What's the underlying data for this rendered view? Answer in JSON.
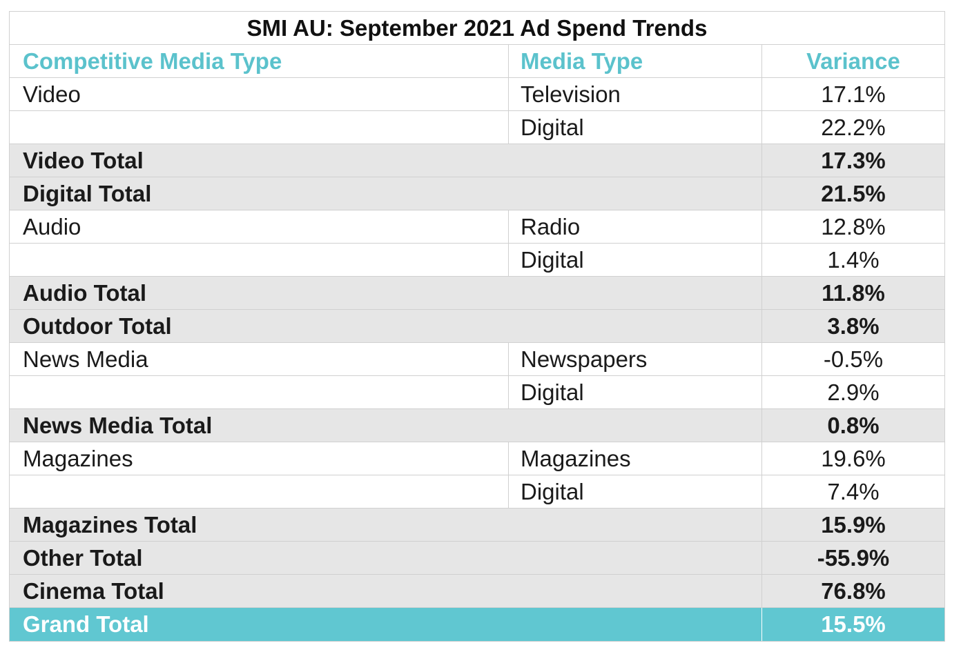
{
  "chart_data": {
    "type": "table",
    "title": "SMI AU: September 2021 Ad Spend Trends",
    "columns": [
      "Competitive Media Type",
      "Media Type",
      "Variance"
    ],
    "rows": [
      {
        "kind": "detail",
        "competitive": "Video",
        "media": "Television",
        "variance": "17.1%"
      },
      {
        "kind": "detail",
        "competitive": "",
        "media": "Digital",
        "variance": "22.2%"
      },
      {
        "kind": "total",
        "label": "Video Total",
        "variance": "17.3%"
      },
      {
        "kind": "total",
        "label": "Digital Total",
        "variance": "21.5%"
      },
      {
        "kind": "detail",
        "competitive": "Audio",
        "media": "Radio",
        "variance": "12.8%"
      },
      {
        "kind": "detail",
        "competitive": "",
        "media": "Digital",
        "variance": "1.4%"
      },
      {
        "kind": "total",
        "label": "Audio Total",
        "variance": "11.8%"
      },
      {
        "kind": "total",
        "label": "Outdoor Total",
        "variance": "3.8%"
      },
      {
        "kind": "detail",
        "competitive": "News Media",
        "media": "Newspapers",
        "variance": "-0.5%"
      },
      {
        "kind": "detail",
        "competitive": "",
        "media": "Digital",
        "variance": "2.9%"
      },
      {
        "kind": "total",
        "label": "News Media Total",
        "variance": "0.8%"
      },
      {
        "kind": "detail",
        "competitive": "Magazines",
        "media": "Magazines",
        "variance": "19.6%"
      },
      {
        "kind": "detail",
        "competitive": "",
        "media": "Digital",
        "variance": "7.4%"
      },
      {
        "kind": "total",
        "label": "Magazines Total",
        "variance": "15.9%"
      },
      {
        "kind": "total",
        "label": "Other Total",
        "variance": "-55.9%"
      },
      {
        "kind": "total",
        "label": "Cinema Total",
        "variance": "76.8%"
      },
      {
        "kind": "grand",
        "label": "Grand Total",
        "variance": "15.5%"
      }
    ],
    "colors": {
      "header_text": "#5bc2cc",
      "total_row_bg": "#e6e6e6",
      "grand_total_bg": "#60c7d1",
      "grand_total_text": "#ffffff"
    }
  }
}
